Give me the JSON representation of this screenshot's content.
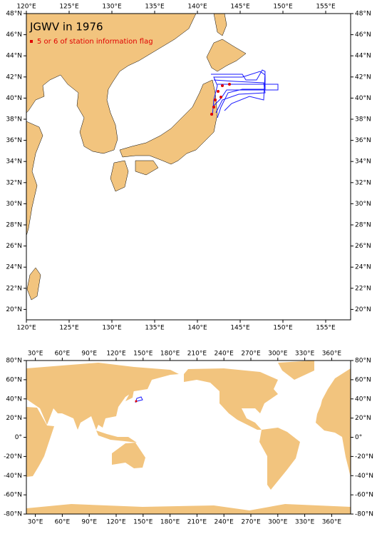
{
  "main_map": {
    "title": "JGWV in 1976",
    "legend": "5 or 6 of station information flag",
    "lon_labels": [
      "120°E",
      "125°E",
      "130°E",
      "135°E",
      "140°E",
      "145°E",
      "150°E",
      "155°E"
    ],
    "lat_labels": [
      "48°N",
      "46°N",
      "44°N",
      "42°N",
      "40°N",
      "38°N",
      "36°N",
      "34°N",
      "32°N",
      "30°N",
      "28°N",
      "26°N",
      "24°N",
      "22°N",
      "20°N"
    ]
  },
  "world_map": {
    "lon_labels": [
      "30°E",
      "60°E",
      "90°E",
      "120°E",
      "150°E",
      "180°E",
      "210°E",
      "240°E",
      "270°E",
      "300°E",
      "330°E",
      "360°E"
    ],
    "lat_labels": [
      "80°N",
      "60°N",
      "40°N",
      "20°N",
      "0°",
      "-20°N",
      "-40°N",
      "-60°N",
      "-80°N"
    ]
  }
}
